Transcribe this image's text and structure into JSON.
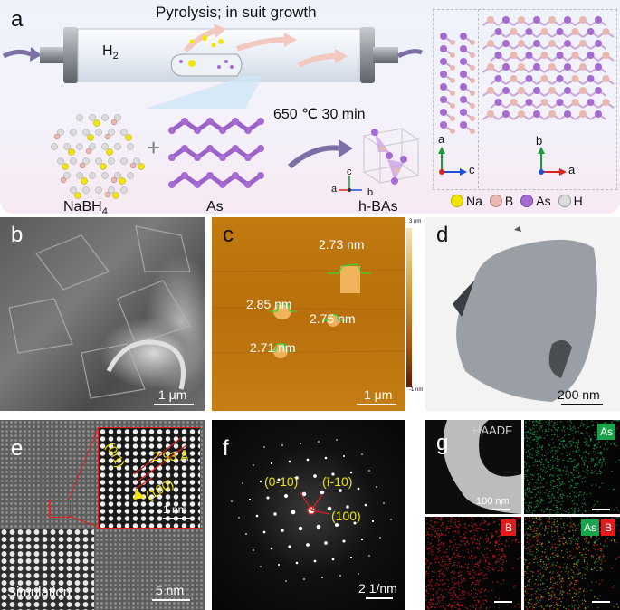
{
  "panel_a": {
    "label": "a",
    "tube_title": "Pyrolysis; in suit growth",
    "gas": "H",
    "gas_sub": "2",
    "condition": "650 ℃ 30 min",
    "reactant1": "NaBH",
    "reactant1_sub": "4",
    "reactant2": "As",
    "product": "h-BAs",
    "axes_side": {
      "up": "a",
      "right": "c"
    },
    "axes_top": {
      "up": "b",
      "right": "a"
    },
    "axes_cell": {
      "up": "c",
      "left": "a",
      "right": "b"
    },
    "legend": [
      {
        "name": "Na",
        "color": "#f2e600"
      },
      {
        "name": "B",
        "color": "#e9b8b0"
      },
      {
        "name": "As",
        "color": "#a56bd0"
      },
      {
        "name": "H",
        "color": "#dcdcdc"
      }
    ]
  },
  "panel_b": {
    "label": "b",
    "scale": "1 μm"
  },
  "panel_c": {
    "label": "c",
    "scale": "1 μm",
    "colorbar_top": "3 nm",
    "colorbar_bottom": "-1 nm",
    "heights": [
      "2.73 nm",
      "2.85 nm",
      "2.75 nm",
      "2.71 nm"
    ]
  },
  "panel_d": {
    "label": "d",
    "scale": "200 nm"
  },
  "panel_e": {
    "label": "e",
    "inset_labels": [
      "(0ī1)",
      "2.93 Å",
      "(100)"
    ],
    "inset_scale": "1 nm",
    "simulation": "Simulation",
    "scale": "5 nm"
  },
  "panel_f": {
    "label": "f",
    "spots": [
      "(0-10)",
      "(ī-10)",
      "(100)"
    ],
    "scale": "2 1/nm"
  },
  "panel_g": {
    "label": "g",
    "haadf": "HAADF",
    "haadf_scale": "100 nm",
    "map_as": "As",
    "map_b": "B",
    "overlay_as": "As",
    "overlay_b": "B",
    "as_color": "#1aa34a",
    "b_color": "#e31b1b"
  }
}
